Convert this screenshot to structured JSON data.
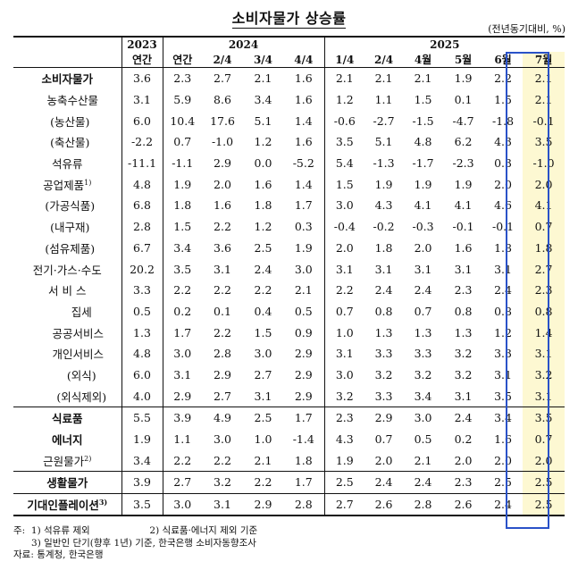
{
  "title": "소비자물가 상승률",
  "unit": "(전년동기대비, %)",
  "header": {
    "years": [
      "2023",
      "2024",
      "2025"
    ],
    "periods": [
      "연간",
      "연간",
      "2/4",
      "3/4",
      "4/4",
      "1/4",
      "2/4",
      "4월",
      "5월",
      "6월",
      "7월"
    ]
  },
  "rows": [
    {
      "label": "소비자물가",
      "values": [
        "3.6",
        "2.3",
        "2.7",
        "2.1",
        "1.6",
        "2.1",
        "2.1",
        "2.1",
        "1.9",
        "2.2",
        "2.1"
      ]
    },
    {
      "label": "농축수산물",
      "values": [
        "3.1",
        "5.9",
        "8.6",
        "3.4",
        "1.6",
        "1.2",
        "1.1",
        "1.5",
        "0.1",
        "1.5",
        "2.1"
      ]
    },
    {
      "label": "(농산물)",
      "values": [
        "6.0",
        "10.4",
        "17.6",
        "5.1",
        "1.4",
        "-0.6",
        "-2.7",
        "-1.5",
        "-4.7",
        "-1.8",
        "-0.1"
      ]
    },
    {
      "label": "(축산물)",
      "values": [
        "-2.2",
        "0.7",
        "-1.0",
        "1.2",
        "1.6",
        "3.5",
        "5.1",
        "4.8",
        "6.2",
        "4.3",
        "3.5"
      ]
    },
    {
      "label": "석유류",
      "values": [
        "-11.1",
        "-1.1",
        "2.9",
        "0.0",
        "-5.2",
        "5.4",
        "-1.3",
        "-1.7",
        "-2.3",
        "0.3",
        "-1.0"
      ]
    },
    {
      "label": "공업제품",
      "sup": "1)",
      "values": [
        "4.8",
        "1.9",
        "2.0",
        "1.6",
        "1.4",
        "1.5",
        "1.9",
        "1.9",
        "1.9",
        "2.0",
        "2.0"
      ]
    },
    {
      "label": "(가공식품)",
      "values": [
        "6.8",
        "1.8",
        "1.6",
        "1.8",
        "1.7",
        "3.0",
        "4.3",
        "4.1",
        "4.1",
        "4.6",
        "4.1"
      ]
    },
    {
      "label": "(내구재)",
      "values": [
        "2.8",
        "1.5",
        "2.2",
        "1.2",
        "0.3",
        "-0.4",
        "-0.2",
        "-0.3",
        "-0.1",
        "-0.1",
        "0.7"
      ]
    },
    {
      "label": "(섬유제품)",
      "values": [
        "6.7",
        "3.4",
        "3.6",
        "2.5",
        "1.9",
        "2.0",
        "1.8",
        "2.0",
        "1.6",
        "1.8",
        "1.8"
      ]
    },
    {
      "label": "전기·가스·수도",
      "values": [
        "20.2",
        "3.5",
        "3.1",
        "2.4",
        "3.0",
        "3.1",
        "3.1",
        "3.1",
        "3.1",
        "3.1",
        "2.7"
      ]
    },
    {
      "label": "서 비 스",
      "values": [
        "3.3",
        "2.2",
        "2.2",
        "2.2",
        "2.1",
        "2.2",
        "2.4",
        "2.4",
        "2.3",
        "2.4",
        "2.3"
      ]
    },
    {
      "label": "집세",
      "values": [
        "0.5",
        "0.2",
        "0.1",
        "0.4",
        "0.5",
        "0.7",
        "0.8",
        "0.7",
        "0.8",
        "0.8",
        "0.8"
      ]
    },
    {
      "label": "공공서비스",
      "values": [
        "1.3",
        "1.7",
        "2.2",
        "1.5",
        "0.9",
        "1.0",
        "1.3",
        "1.3",
        "1.3",
        "1.2",
        "1.4"
      ]
    },
    {
      "label": "개인서비스",
      "values": [
        "4.8",
        "3.0",
        "2.8",
        "3.0",
        "2.9",
        "3.1",
        "3.3",
        "3.3",
        "3.2",
        "3.3",
        "3.1"
      ]
    },
    {
      "label": "(외식)",
      "values": [
        "6.0",
        "3.1",
        "2.9",
        "2.7",
        "2.9",
        "3.0",
        "3.2",
        "3.2",
        "3.2",
        "3.1",
        "3.2"
      ]
    },
    {
      "label": "(외식제외)",
      "values": [
        "4.0",
        "2.9",
        "2.7",
        "3.1",
        "2.9",
        "3.2",
        "3.3",
        "3.4",
        "3.1",
        "3.5",
        "3.1"
      ]
    },
    {
      "label": "식료품",
      "values": [
        "5.5",
        "3.9",
        "4.9",
        "2.5",
        "1.7",
        "2.3",
        "2.9",
        "3.0",
        "2.4",
        "3.4",
        "3.5"
      ]
    },
    {
      "label": "에너지",
      "values": [
        "1.9",
        "1.1",
        "3.0",
        "1.0",
        "-1.4",
        "4.3",
        "0.7",
        "0.5",
        "0.2",
        "1.6",
        "0.7"
      ]
    },
    {
      "label": "근원물가",
      "sup": "2)",
      "values": [
        "3.4",
        "2.2",
        "2.2",
        "2.1",
        "1.8",
        "1.9",
        "2.0",
        "2.1",
        "2.0",
        "2.0",
        "2.0"
      ]
    },
    {
      "label": "생활물가",
      "values": [
        "3.9",
        "2.7",
        "3.2",
        "2.2",
        "1.7",
        "2.5",
        "2.4",
        "2.4",
        "2.3",
        "2.5",
        "2.5"
      ]
    },
    {
      "label": "기대인플레이션",
      "sup": "3)",
      "values": [
        "3.5",
        "3.0",
        "3.1",
        "2.9",
        "2.8",
        "2.7",
        "2.6",
        "2.8",
        "2.6",
        "2.4",
        "2.5"
      ]
    }
  ],
  "notes": {
    "prefix": "주:",
    "n1": "1) 석유류 제외",
    "n2": "2) 식료품·에너지 제외 기준",
    "n3": "3) 일반인 단기(향후 1년) 기준, 한국은행 소비자동향조사",
    "source": "자료: 통계청, 한국은행"
  },
  "colors": {
    "highlight_border": "#2a52c8",
    "highlight_fill": "#fdf8d2"
  }
}
